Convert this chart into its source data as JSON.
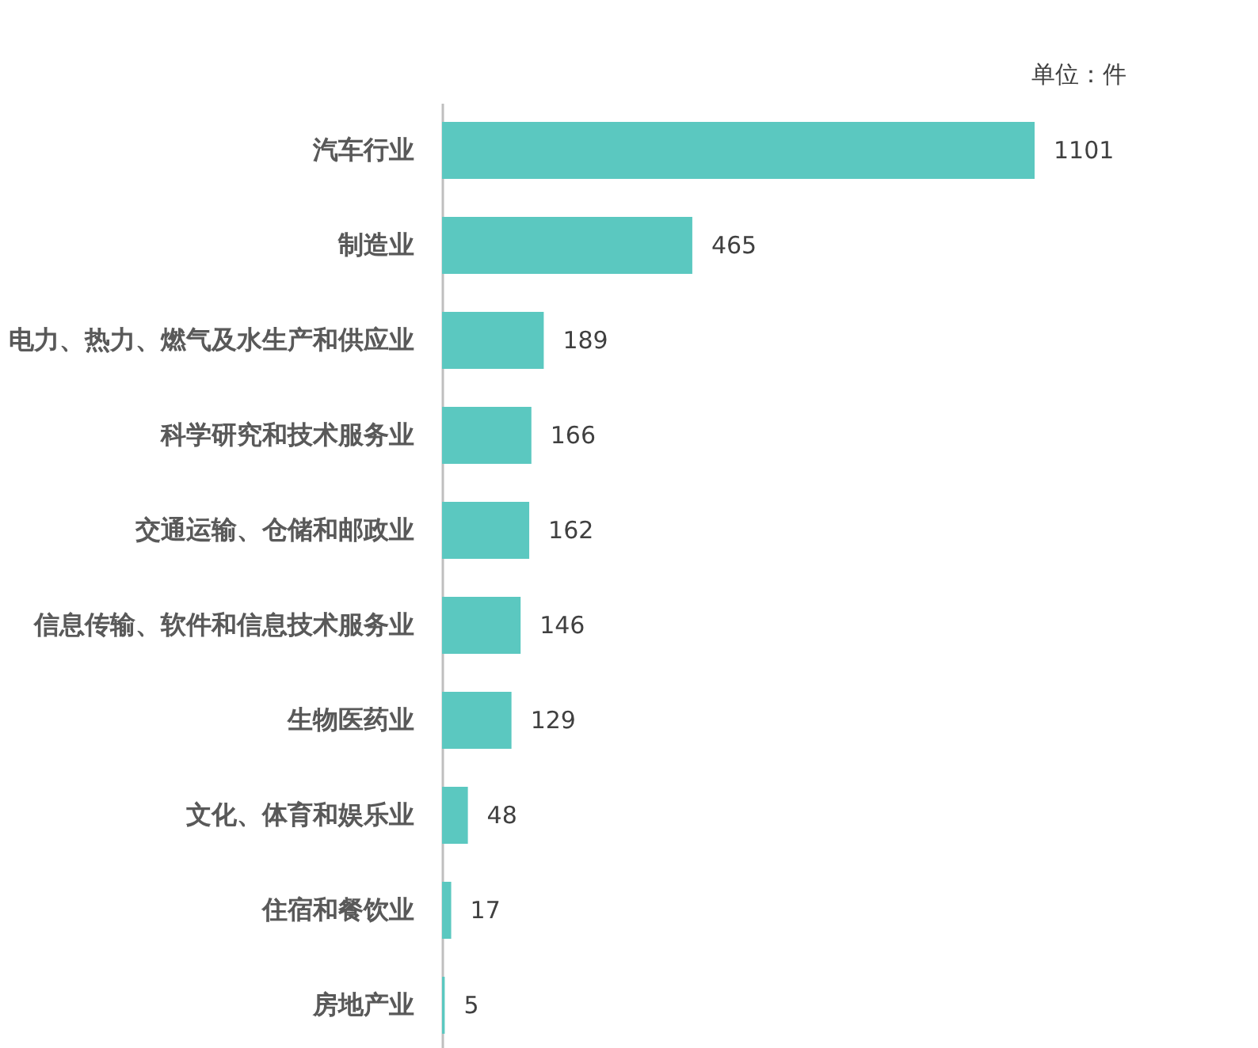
{
  "chart_data": {
    "type": "bar",
    "orientation": "horizontal",
    "categories": [
      "汽车行业",
      "制造业",
      "电力、热力、燃气及水生产和供应业",
      "科学研究和技术服务业",
      "交通运输、仓储和邮政业",
      "信息传输、软件和信息技术服务业",
      "生物医药业",
      "文化、体育和娱乐业",
      "住宿和餐饮业",
      "房地产业"
    ],
    "values": [
      1101,
      465,
      189,
      166,
      162,
      146,
      129,
      48,
      17,
      5
    ],
    "color": "#5bc8c0",
    "data_labels": true,
    "annotations": [
      "单位：件"
    ]
  }
}
